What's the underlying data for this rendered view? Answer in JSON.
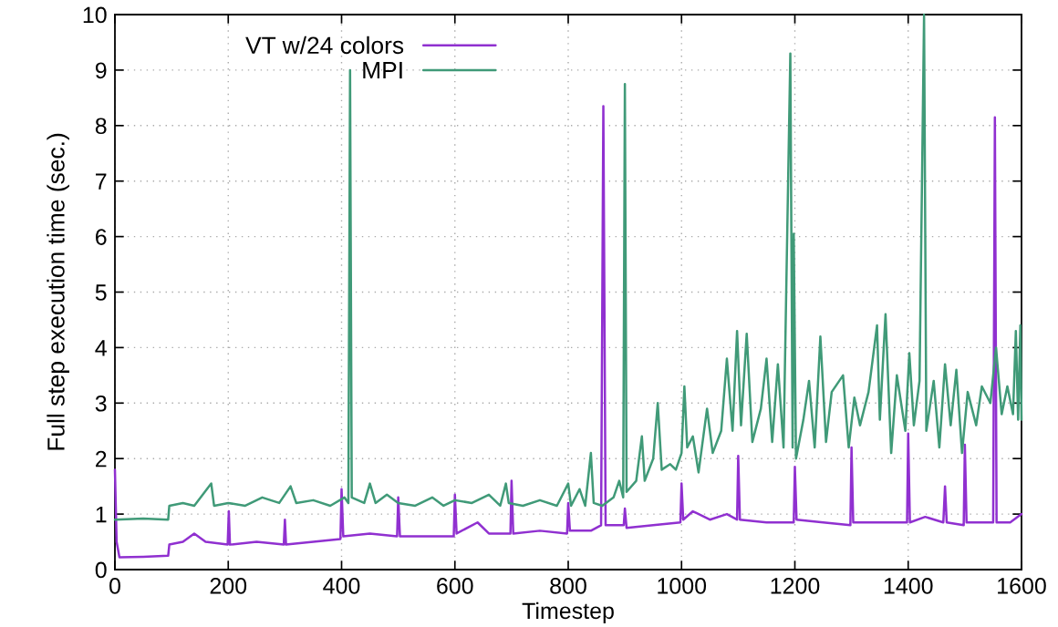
{
  "chart_data": {
    "type": "line",
    "xlabel": "Timestep",
    "ylabel": "Full step execution time (sec.)",
    "xlim": [
      0,
      1600
    ],
    "ylim": [
      0,
      10
    ],
    "xticks": [
      0,
      200,
      400,
      600,
      800,
      1000,
      1200,
      1400,
      1600
    ],
    "yticks": [
      0,
      1,
      2,
      3,
      4,
      5,
      6,
      7,
      8,
      9,
      10
    ],
    "grid": true,
    "legend": "top left",
    "marker": "none",
    "line_style": "solid",
    "series": [
      {
        "name": "VT w/24 colors",
        "color": "#9030d0",
        "x": [
          0,
          3,
          8,
          50,
          94,
          96,
          120,
          140,
          160,
          199,
          201,
          203,
          250,
          298,
          300,
          302,
          350,
          398,
          400,
          403,
          450,
          498,
          500,
          503,
          550,
          598,
          600,
          603,
          640,
          660,
          698,
          700,
          703,
          750,
          798,
          800,
          803,
          840,
          858,
          862,
          866,
          898,
          900,
          903,
          950,
          998,
          1000,
          1003,
          1020,
          1050,
          1080,
          1098,
          1100,
          1103,
          1150,
          1198,
          1200,
          1203,
          1250,
          1298,
          1300,
          1303,
          1350,
          1398,
          1400,
          1403,
          1430,
          1462,
          1465,
          1468,
          1498,
          1500,
          1503,
          1550,
          1553,
          1556,
          1580,
          1600
        ],
        "values": [
          1.8,
          0.5,
          0.22,
          0.23,
          0.25,
          0.45,
          0.5,
          0.65,
          0.5,
          0.45,
          1.05,
          0.45,
          0.5,
          0.45,
          0.9,
          0.45,
          0.5,
          0.55,
          1.45,
          0.6,
          0.65,
          0.6,
          1.3,
          0.6,
          0.6,
          0.6,
          1.35,
          0.65,
          0.85,
          0.65,
          0.65,
          1.6,
          0.65,
          0.7,
          0.65,
          1.2,
          0.7,
          0.7,
          0.8,
          8.35,
          0.8,
          0.8,
          1.1,
          0.75,
          0.8,
          0.85,
          1.55,
          0.9,
          1.05,
          0.9,
          1.0,
          0.9,
          2.05,
          0.9,
          0.85,
          0.85,
          1.85,
          0.9,
          0.85,
          0.8,
          2.2,
          0.85,
          0.85,
          0.85,
          2.45,
          0.85,
          0.95,
          0.85,
          1.5,
          0.85,
          0.8,
          2.25,
          0.85,
          0.85,
          8.15,
          0.85,
          0.85,
          1.0
        ]
      },
      {
        "name": "MPI",
        "color": "#409a78",
        "x": [
          0,
          50,
          94,
          96,
          120,
          140,
          170,
          175,
          200,
          230,
          260,
          290,
          310,
          320,
          350,
          380,
          405,
          412,
          415,
          418,
          440,
          450,
          460,
          480,
          500,
          530,
          560,
          580,
          600,
          630,
          660,
          680,
          690,
          695,
          720,
          750,
          780,
          800,
          805,
          820,
          830,
          840,
          845,
          860,
          880,
          890,
          897,
          900,
          903,
          920,
          930,
          935,
          950,
          958,
          965,
          980,
          990,
          1000,
          1005,
          1010,
          1020,
          1030,
          1045,
          1055,
          1070,
          1080,
          1090,
          1098,
          1105,
          1115,
          1125,
          1140,
          1150,
          1160,
          1170,
          1180,
          1192,
          1196,
          1198,
          1202,
          1215,
          1225,
          1235,
          1245,
          1255,
          1265,
          1285,
          1295,
          1305,
          1315,
          1330,
          1345,
          1350,
          1360,
          1370,
          1380,
          1395,
          1402,
          1410,
          1420,
          1428,
          1432,
          1445,
          1455,
          1465,
          1475,
          1485,
          1495,
          1505,
          1520,
          1530,
          1545,
          1555,
          1565,
          1575,
          1585,
          1590,
          1594,
          1598,
          1600
        ],
        "values": [
          0.9,
          0.92,
          0.9,
          1.15,
          1.2,
          1.15,
          1.55,
          1.15,
          1.2,
          1.15,
          1.3,
          1.2,
          1.5,
          1.2,
          1.25,
          1.15,
          1.3,
          1.2,
          9.0,
          1.3,
          1.2,
          1.55,
          1.2,
          1.35,
          1.2,
          1.15,
          1.3,
          1.15,
          1.25,
          1.2,
          1.35,
          1.15,
          1.55,
          1.2,
          1.15,
          1.25,
          1.15,
          1.55,
          1.15,
          1.45,
          1.15,
          2.1,
          1.2,
          1.15,
          1.3,
          1.6,
          1.3,
          8.75,
          1.4,
          1.6,
          2.4,
          1.6,
          2.0,
          3.0,
          1.8,
          1.9,
          1.8,
          2.1,
          3.3,
          2.2,
          2.4,
          1.75,
          2.9,
          2.1,
          2.5,
          3.8,
          2.5,
          4.3,
          2.6,
          4.25,
          2.3,
          2.9,
          3.8,
          2.3,
          3.7,
          2.2,
          9.3,
          2.2,
          6.05,
          2.0,
          2.7,
          3.4,
          2.2,
          4.2,
          2.3,
          3.2,
          3.5,
          2.2,
          3.1,
          2.6,
          3.2,
          4.4,
          2.7,
          4.6,
          2.1,
          3.5,
          2.5,
          3.9,
          2.6,
          3.4,
          10.0,
          2.5,
          3.4,
          2.2,
          3.7,
          2.6,
          3.6,
          2.1,
          3.2,
          2.6,
          3.3,
          3.0,
          4.0,
          2.8,
          3.3,
          2.8,
          4.3,
          2.7,
          4.4,
          2.7
        ]
      }
    ]
  }
}
